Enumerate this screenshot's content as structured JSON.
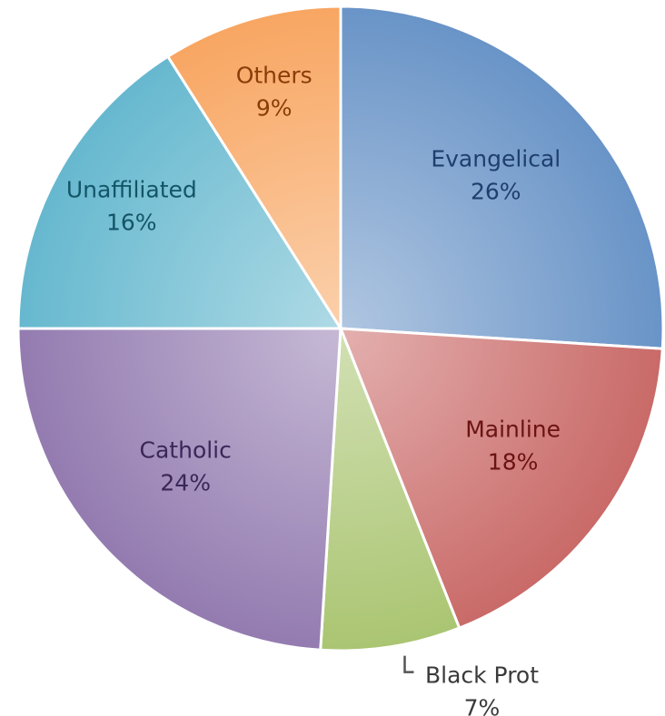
{
  "chart_data": {
    "type": "pie",
    "title": "",
    "start_angle_deg": 90,
    "direction": "clockwise",
    "slices": [
      {
        "label": "Evangelical",
        "value": 26,
        "pct_label": "26%",
        "color": "#4f81bd",
        "label_color": "#1f3f6e"
      },
      {
        "label": "Mainline",
        "value": 18,
        "pct_label": "18%",
        "color": "#c0504d",
        "label_color": "#6b1312"
      },
      {
        "label": "Black Prot",
        "value": 7,
        "pct_label": "7%",
        "color": "#9bbb59",
        "label_color": "#3a3a3a"
      },
      {
        "label": "Catholic",
        "value": 24,
        "pct_label": "24%",
        "color": "#8064a2",
        "label_color": "#3a2758"
      },
      {
        "label": "Unaffiliated",
        "value": 16,
        "pct_label": "16%",
        "color": "#4bacc6",
        "label_color": "#135567"
      },
      {
        "label": "Others",
        "value": 9,
        "pct_label": "9%",
        "color": "#f79646",
        "label_color": "#8a3d08"
      }
    ]
  }
}
